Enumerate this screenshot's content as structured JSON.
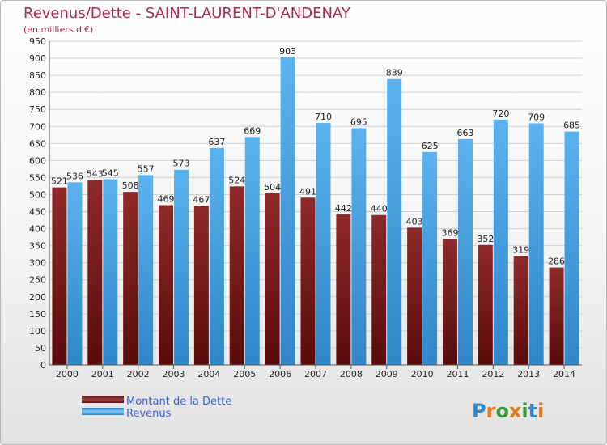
{
  "title": "Revenus/Dette - SAINT-LAURENT-D'ANDENAY",
  "subtitle": "(en milliers d'€)",
  "logo": "Proxiti",
  "colors": {
    "dette": "#7a1a1a",
    "revenus": "#3c9de0",
    "title": "#b02a4a",
    "legend_text": "#3a5fd0"
  },
  "chart_data": {
    "type": "bar",
    "categories": [
      "2000",
      "2001",
      "2002",
      "2003",
      "2004",
      "2005",
      "2006",
      "2007",
      "2008",
      "2009",
      "2010",
      "2011",
      "2012",
      "2013",
      "2014"
    ],
    "series": [
      {
        "name": "Montant de la Dette",
        "values": [
          521,
          543,
          508,
          469,
          467,
          524,
          504,
          491,
          442,
          440,
          403,
          369,
          352,
          319,
          286
        ]
      },
      {
        "name": "Revenus",
        "values": [
          536,
          545,
          557,
          573,
          637,
          669,
          903,
          710,
          695,
          839,
          625,
          663,
          720,
          709,
          685
        ]
      }
    ],
    "ylim": [
      0,
      950
    ],
    "yticks": [
      0,
      50,
      100,
      150,
      200,
      250,
      300,
      350,
      400,
      450,
      500,
      550,
      600,
      650,
      700,
      750,
      800,
      850,
      900,
      950
    ],
    "grid": true,
    "legend_position": "bottom-left"
  }
}
